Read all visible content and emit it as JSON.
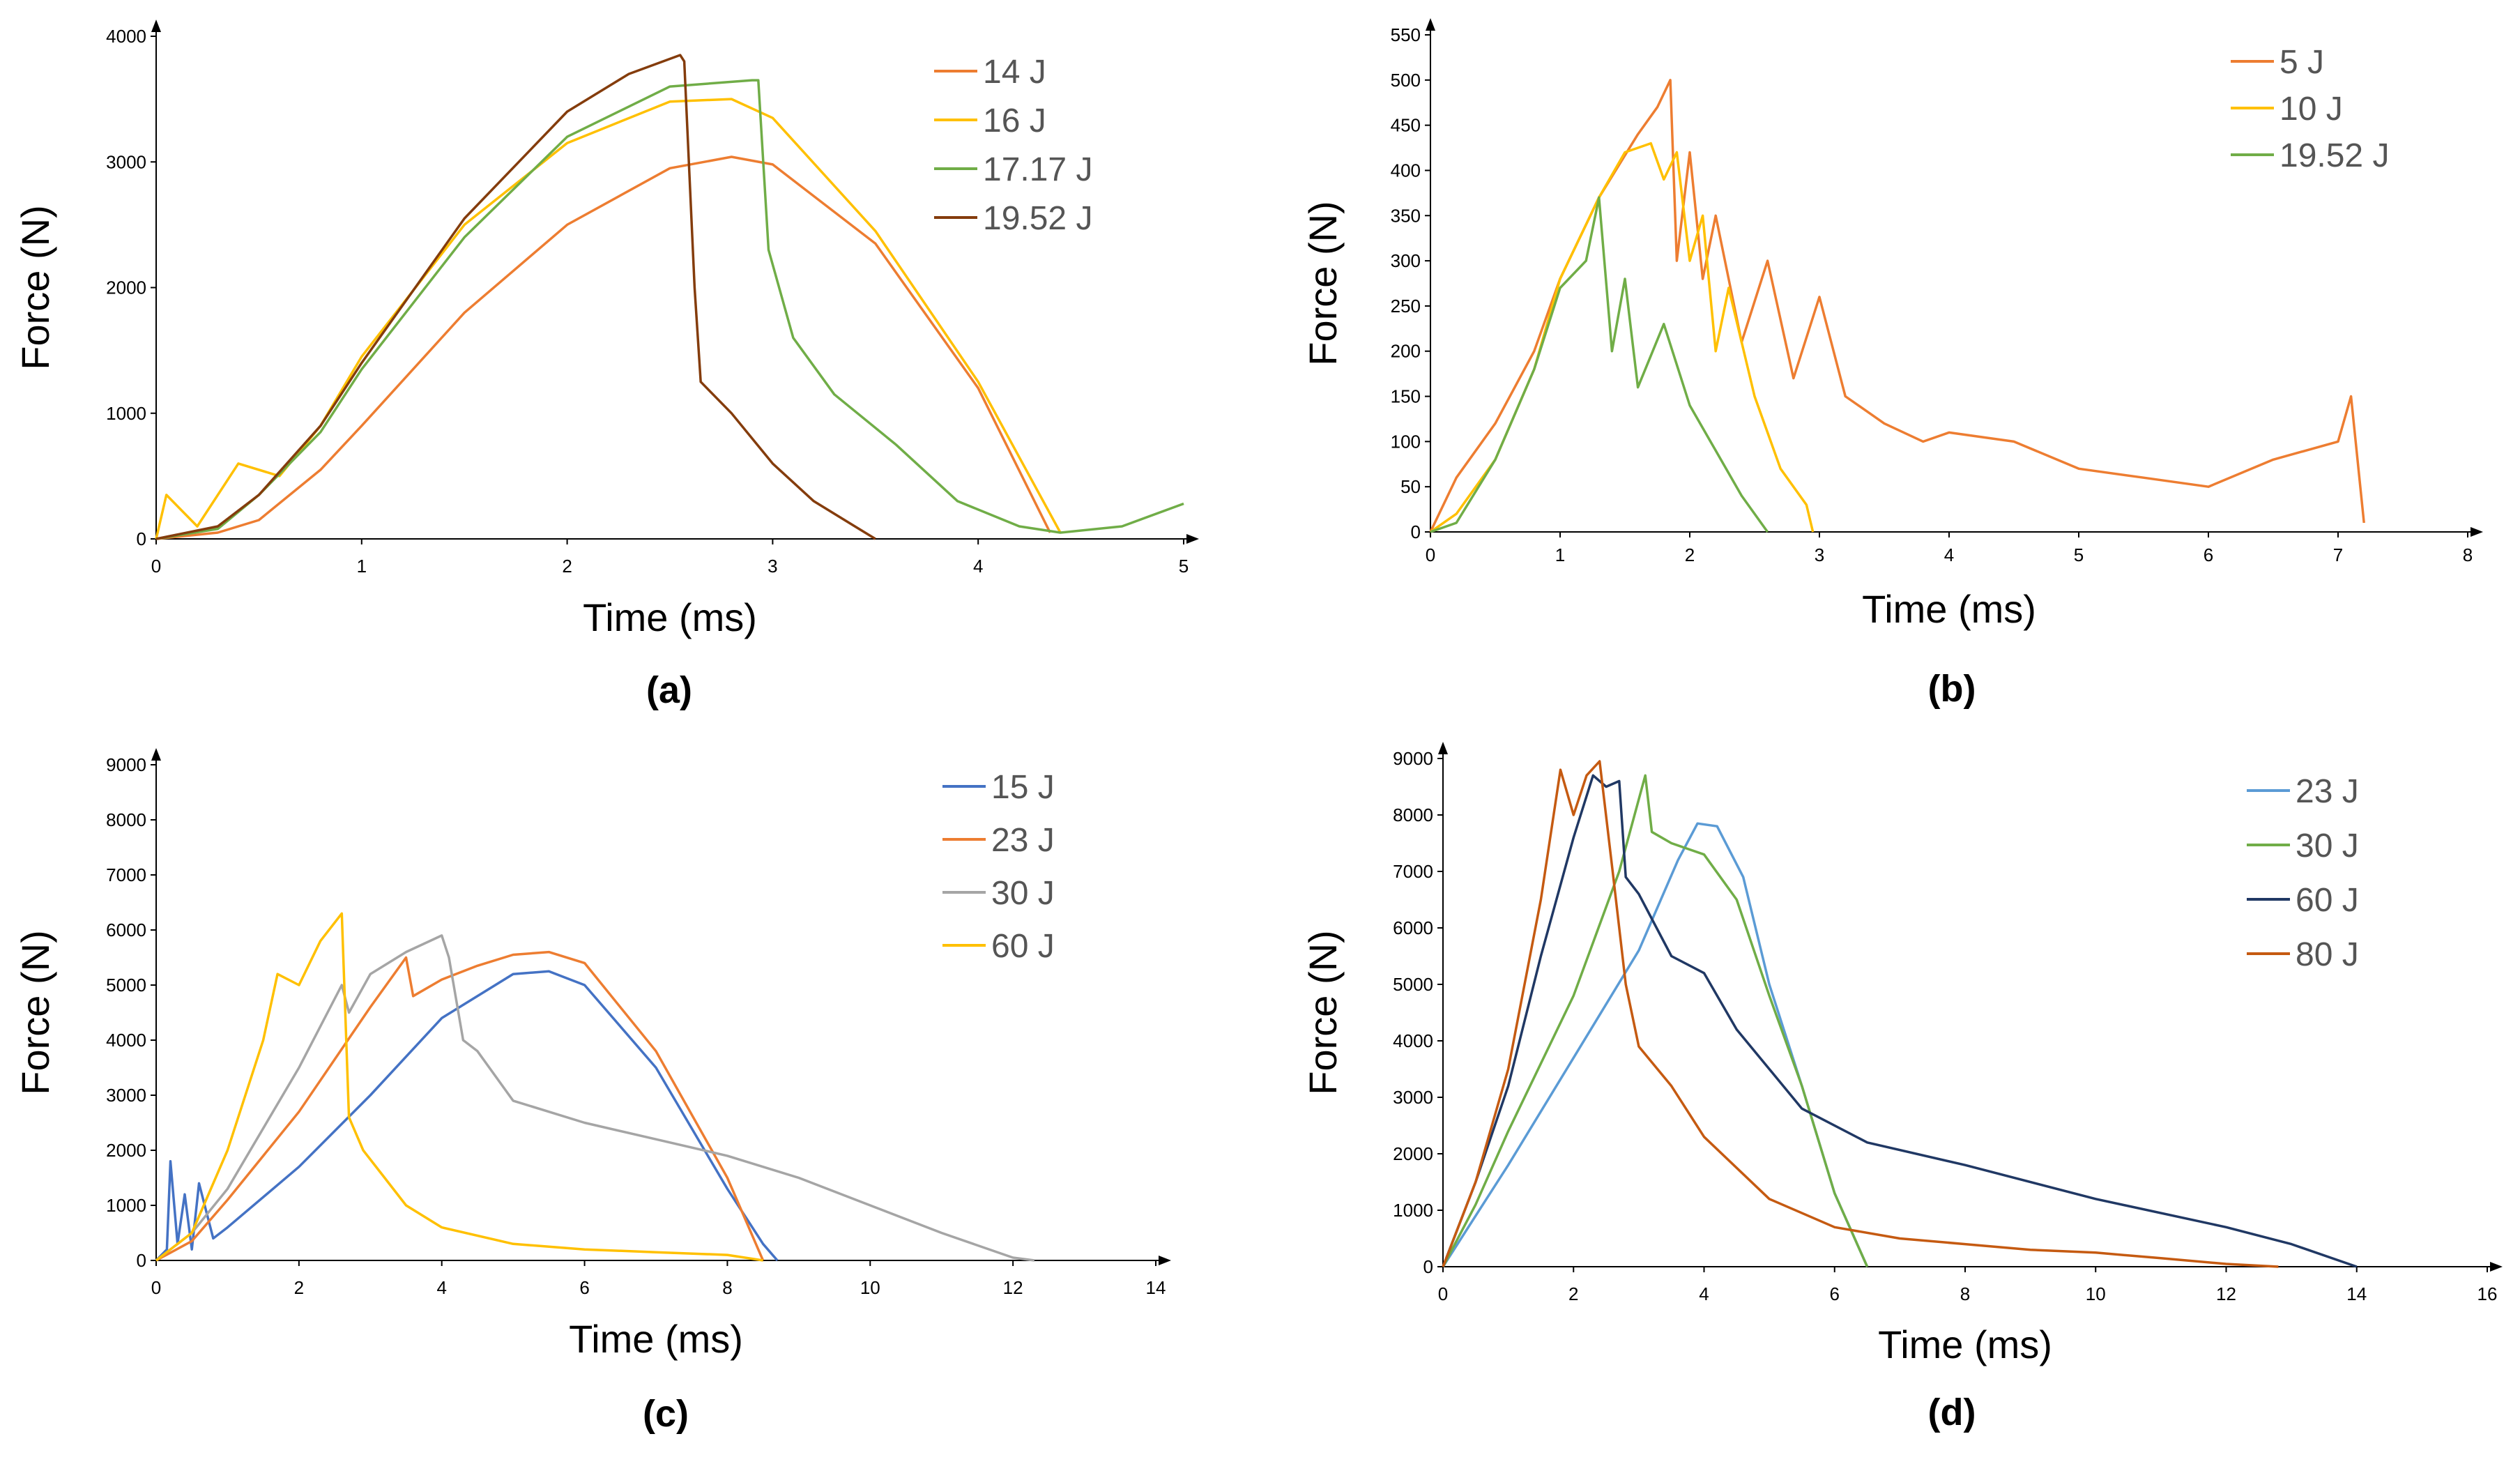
{
  "chart_data": [
    {
      "type": "line",
      "caption": "(a)",
      "xlabel": "Time (ms)",
      "ylabel": "Force (N)",
      "xlim": [
        0,
        5
      ],
      "ylim": [
        0,
        4000
      ],
      "xticks": [
        "0",
        "1",
        "2",
        "3",
        "4",
        "5"
      ],
      "yticks": [
        "0",
        "1000",
        "2000",
        "3000",
        "4000"
      ],
      "legend_position": "top-right",
      "series": [
        {
          "name": "14 J",
          "color": "#ED7D31",
          "x": [
            0,
            0.3,
            0.5,
            0.8,
            1.0,
            1.5,
            2.0,
            2.5,
            2.8,
            3.0,
            3.5,
            4.0,
            4.35
          ],
          "y": [
            0,
            50,
            150,
            550,
            900,
            1800,
            2500,
            2950,
            3040,
            2980,
            2350,
            1200,
            50
          ]
        },
        {
          "name": "16 J",
          "color": "#FFC000",
          "x": [
            0,
            0.05,
            0.2,
            0.4,
            0.6,
            0.8,
            1.0,
            1.5,
            2.0,
            2.5,
            2.8,
            3.0,
            3.5,
            4.0,
            4.4
          ],
          "y": [
            0,
            350,
            100,
            600,
            500,
            900,
            1450,
            2500,
            3150,
            3480,
            3500,
            3350,
            2450,
            1250,
            50
          ]
        },
        {
          "name": "17.17 J",
          "color": "#70AD47",
          "x": [
            0,
            0.3,
            0.5,
            0.8,
            1.0,
            1.5,
            2.0,
            2.5,
            2.9,
            2.93,
            2.98,
            3.1,
            3.3,
            3.6,
            3.9,
            4.2,
            4.4,
            4.7,
            5.0
          ],
          "y": [
            0,
            80,
            350,
            850,
            1350,
            2400,
            3200,
            3600,
            3650,
            3650,
            2300,
            1600,
            1150,
            750,
            300,
            100,
            50,
            100,
            280
          ]
        },
        {
          "name": "19.52 J",
          "color": "#843C0C",
          "x": [
            0,
            0.3,
            0.5,
            0.8,
            1.0,
            1.5,
            2.0,
            2.3,
            2.55,
            2.57,
            2.62,
            2.65,
            2.8,
            3.0,
            3.2,
            3.4,
            3.5
          ],
          "y": [
            0,
            100,
            350,
            900,
            1400,
            2550,
            3400,
            3700,
            3850,
            3800,
            2000,
            1250,
            1000,
            600,
            300,
            100,
            0
          ]
        }
      ]
    },
    {
      "type": "line",
      "caption": "(b)",
      "xlabel": "Time (ms)",
      "ylabel": "Force (N)",
      "xlim": [
        0,
        8
      ],
      "ylim": [
        0,
        550
      ],
      "xticks": [
        "0",
        "1",
        "2",
        "3",
        "4",
        "5",
        "6",
        "7",
        "8"
      ],
      "yticks": [
        "0",
        "50",
        "100",
        "150",
        "200",
        "250",
        "300",
        "350",
        "400",
        "450",
        "500",
        "550"
      ],
      "legend_position": "top-right",
      "series": [
        {
          "name": "5 J",
          "color": "#ED7D31",
          "x": [
            0,
            0.2,
            0.5,
            0.8,
            1.0,
            1.3,
            1.6,
            1.75,
            1.85,
            1.9,
            2.0,
            2.1,
            2.2,
            2.4,
            2.6,
            2.8,
            3.0,
            3.2,
            3.5,
            3.8,
            4.0,
            4.5,
            5.0,
            5.5,
            6.0,
            6.5,
            7.0,
            7.1,
            7.2
          ],
          "y": [
            0,
            60,
            120,
            200,
            280,
            370,
            440,
            470,
            500,
            300,
            420,
            280,
            350,
            210,
            300,
            170,
            260,
            150,
            120,
            100,
            110,
            100,
            70,
            60,
            50,
            80,
            100,
            150,
            10
          ]
        },
        {
          "name": "10 J",
          "color": "#FFC000",
          "x": [
            0,
            0.2,
            0.5,
            0.8,
            1.0,
            1.3,
            1.5,
            1.7,
            1.8,
            1.9,
            2.0,
            2.1,
            2.2,
            2.3,
            2.5,
            2.7,
            2.9,
            2.95
          ],
          "y": [
            0,
            20,
            80,
            180,
            280,
            370,
            420,
            430,
            390,
            420,
            300,
            350,
            200,
            270,
            150,
            70,
            30,
            0
          ]
        },
        {
          "name": "19.52 J",
          "color": "#70AD47",
          "x": [
            0,
            0.2,
            0.5,
            0.8,
            1.0,
            1.2,
            1.3,
            1.4,
            1.5,
            1.6,
            1.8,
            2.0,
            2.2,
            2.4,
            2.6
          ],
          "y": [
            0,
            10,
            80,
            180,
            270,
            300,
            370,
            200,
            280,
            160,
            230,
            140,
            90,
            40,
            0
          ]
        }
      ]
    },
    {
      "type": "line",
      "caption": "(c)",
      "xlabel": "Time (ms)",
      "ylabel": "Force (N)",
      "xlim": [
        0,
        14
      ],
      "ylim": [
        0,
        9000
      ],
      "xticks": [
        "0",
        "2",
        "4",
        "6",
        "8",
        "10",
        "12",
        "14"
      ],
      "yticks": [
        "0",
        "1000",
        "2000",
        "3000",
        "4000",
        "5000",
        "6000",
        "7000",
        "8000",
        "9000"
      ],
      "legend_position": "top-right",
      "series": [
        {
          "name": "15 J",
          "color": "#4472C4",
          "x": [
            0,
            0.15,
            0.2,
            0.3,
            0.4,
            0.5,
            0.6,
            0.8,
            1.0,
            2.0,
            3.0,
            4.0,
            5.0,
            5.5,
            6.0,
            7.0,
            8.0,
            8.5,
            8.7
          ],
          "y": [
            0,
            200,
            1800,
            300,
            1200,
            200,
            1400,
            400,
            600,
            1700,
            3000,
            4400,
            5200,
            5250,
            5000,
            3500,
            1300,
            300,
            0
          ]
        },
        {
          "name": "23 J",
          "color": "#ED7D31",
          "x": [
            0,
            0.5,
            1.0,
            2.0,
            3.0,
            3.5,
            3.6,
            4.0,
            4.5,
            5.0,
            5.5,
            6.0,
            7.0,
            8.0,
            8.5
          ],
          "y": [
            0,
            350,
            1100,
            2700,
            4600,
            5500,
            4800,
            5100,
            5350,
            5550,
            5600,
            5400,
            3800,
            1500,
            0
          ]
        },
        {
          "name": "30 J",
          "color": "#A5A5A5",
          "x": [
            0,
            0.5,
            1.0,
            2.0,
            2.6,
            2.7,
            3.0,
            3.5,
            4.0,
            4.1,
            4.3,
            4.5,
            5.0,
            6.0,
            7.0,
            8.0,
            9.0,
            10.0,
            11.0,
            12.0,
            12.3
          ],
          "y": [
            0,
            500,
            1300,
            3500,
            5000,
            4500,
            5200,
            5600,
            5900,
            5500,
            4000,
            3800,
            2900,
            2500,
            2200,
            1900,
            1500,
            1000,
            500,
            50,
            0
          ]
        },
        {
          "name": "60 J",
          "color": "#FFC000",
          "x": [
            0,
            0.5,
            1.0,
            1.5,
            1.7,
            2.0,
            2.3,
            2.6,
            2.7,
            2.9,
            3.2,
            3.5,
            4.0,
            5.0,
            6.0,
            7.0,
            8.0,
            8.5
          ],
          "y": [
            0,
            500,
            2000,
            4000,
            5200,
            5000,
            5800,
            6300,
            2600,
            2000,
            1500,
            1000,
            600,
            300,
            200,
            150,
            100,
            0
          ]
        }
      ]
    },
    {
      "type": "line",
      "caption": "(d)",
      "xlabel": "Time (ms)",
      "ylabel": "Force (N)",
      "xlim": [
        0,
        16
      ],
      "ylim": [
        0,
        9000
      ],
      "xticks": [
        "0",
        "2",
        "4",
        "6",
        "8",
        "10",
        "12",
        "14",
        "16"
      ],
      "yticks": [
        "0",
        "1000",
        "2000",
        "3000",
        "4000",
        "5000",
        "6000",
        "7000",
        "8000",
        "9000"
      ],
      "legend_position": "top-right",
      "series": [
        {
          "name": "23 J",
          "color": "#5B9BD5",
          "x": [
            0,
            0.5,
            1.0,
            2.0,
            3.0,
            3.6,
            3.9,
            4.2,
            4.6,
            5.0,
            5.5,
            6.0,
            6.5
          ],
          "y": [
            0,
            900,
            1800,
            3700,
            5600,
            7200,
            7850,
            7800,
            6900,
            5000,
            3200,
            1300,
            0
          ]
        },
        {
          "name": "30 J",
          "color": "#70AD47",
          "x": [
            0,
            0.5,
            1.0,
            2.0,
            2.7,
            3.1,
            3.2,
            3.5,
            4.0,
            4.5,
            5.0,
            5.5,
            6.0,
            6.5
          ],
          "y": [
            0,
            1100,
            2400,
            4800,
            7000,
            8700,
            7700,
            7500,
            7300,
            6500,
            4800,
            3200,
            1300,
            0
          ]
        },
        {
          "name": "60 J",
          "color": "#203864",
          "x": [
            0,
            0.5,
            1.0,
            1.5,
            2.0,
            2.3,
            2.5,
            2.7,
            2.8,
            3.0,
            3.5,
            4.0,
            4.5,
            5.5,
            6.5,
            8.0,
            10.0,
            12.0,
            13.0,
            14.0
          ],
          "y": [
            0,
            1500,
            3200,
            5500,
            7600,
            8700,
            8500,
            8600,
            6900,
            6600,
            5500,
            5200,
            4200,
            2800,
            2200,
            1800,
            1200,
            700,
            400,
            0
          ]
        },
        {
          "name": "80 J",
          "color": "#C55A11",
          "x": [
            0,
            0.5,
            1.0,
            1.5,
            1.8,
            2.0,
            2.2,
            2.4,
            2.6,
            2.8,
            3.0,
            3.5,
            4.0,
            5.0,
            6.0,
            7.0,
            8.0,
            9.0,
            10.0,
            11.0,
            12.0,
            12.8
          ],
          "y": [
            0,
            1500,
            3500,
            6500,
            8800,
            8000,
            8700,
            8950,
            7000,
            5000,
            3900,
            3200,
            2300,
            1200,
            700,
            500,
            400,
            300,
            250,
            150,
            50,
            0
          ]
        }
      ]
    }
  ]
}
